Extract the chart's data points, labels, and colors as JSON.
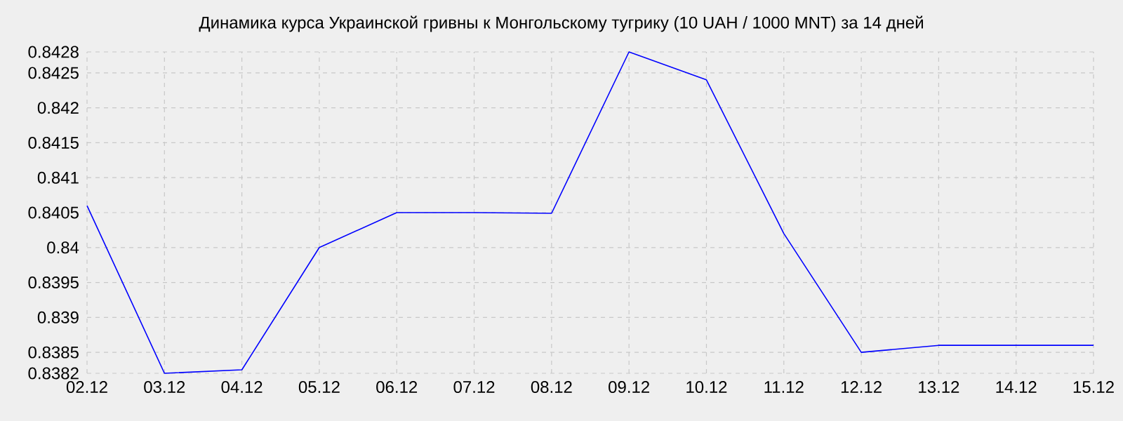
{
  "chart_data": {
    "type": "line",
    "title": "Динамика курса Украинской гривны к Монгольскому тугрику (10 UAH / 1000 MNT) за 14 дней",
    "categories": [
      "02.12",
      "03.12",
      "04.12",
      "05.12",
      "06.12",
      "07.12",
      "08.12",
      "09.12",
      "10.12",
      "11.12",
      "12.12",
      "13.12",
      "14.12",
      "15.12"
    ],
    "series": [
      {
        "color": "#0000ff",
        "values": [
          0.8406,
          0.8382,
          0.83825,
          0.84,
          0.8405,
          0.8405,
          0.84049,
          0.8428,
          0.8424,
          0.8402,
          0.8385,
          0.8386,
          0.8386,
          0.8386
        ]
      }
    ],
    "ylim": [
      0.8382,
      0.8428
    ],
    "yticks": [
      0.8382,
      0.8385,
      0.839,
      0.8395,
      0.84,
      0.8405,
      0.841,
      0.8415,
      0.842,
      0.8425,
      0.8428
    ],
    "grid": true,
    "marker": "none",
    "line_style": "solid"
  }
}
